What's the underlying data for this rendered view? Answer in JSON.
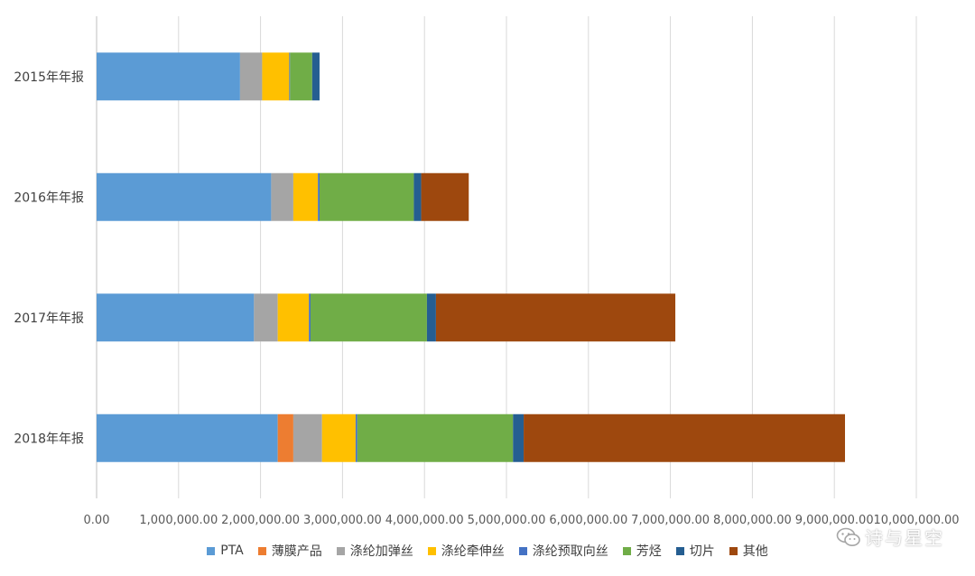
{
  "chart_data": {
    "type": "bar",
    "orientation": "horizontal",
    "stacked": true,
    "categories": [
      "2015年年报",
      "2016年年报",
      "2017年年报",
      "2018年年报"
    ],
    "series": [
      {
        "name": "PTA",
        "color": "#5B9BD5",
        "values": [
          1750000,
          2130000,
          1920000,
          2210000
        ]
      },
      {
        "name": "薄膜产品",
        "color": "#ED7D31",
        "values": [
          0,
          0,
          0,
          190000
        ]
      },
      {
        "name": "涤纶加弹丝",
        "color": "#A5A5A5",
        "values": [
          270000,
          270000,
          290000,
          350000
        ]
      },
      {
        "name": "涤纶牵伸丝",
        "color": "#FFC000",
        "values": [
          330000,
          300000,
          380000,
          410000
        ]
      },
      {
        "name": "涤纶预取向丝",
        "color": "#4472C4",
        "values": [
          10000,
          20000,
          20000,
          20000
        ]
      },
      {
        "name": "芳烃",
        "color": "#70AD47",
        "values": [
          270000,
          1150000,
          1420000,
          1900000
        ]
      },
      {
        "name": "切片",
        "color": "#255E91",
        "values": [
          90000,
          90000,
          110000,
          130000
        ]
      },
      {
        "name": "其他",
        "color": "#9E480E",
        "values": [
          0,
          580000,
          2920000,
          3920000
        ]
      }
    ],
    "xlim": [
      0,
      10000000
    ],
    "x_ticks": [
      "0.00",
      "1,000,000.00",
      "2,000,000.00",
      "3,000,000.00",
      "4,000,000.00",
      "5,000,000.00",
      "6,000,000.00",
      "7,000,000.00",
      "8,000,000.00",
      "9,000,000.00",
      "10,000,000.00"
    ],
    "grid": "vertical",
    "legend_position": "bottom"
  },
  "watermark": {
    "text": "诗与星空",
    "icon": "wechat-icon"
  }
}
